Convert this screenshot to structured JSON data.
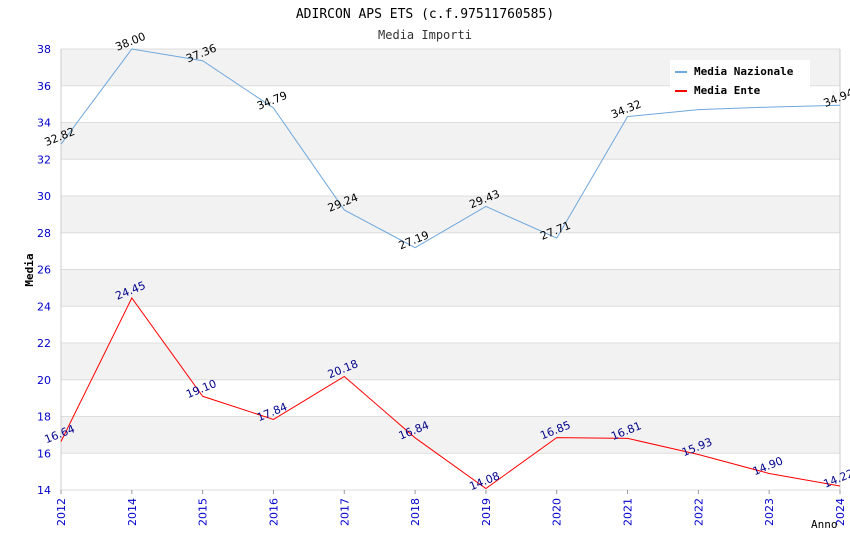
{
  "chart_data": {
    "type": "line",
    "title": "ADIRCON APS ETS (c.f.97511760585)",
    "subtitle": "Media Importi",
    "xlabel": "Anno",
    "ylabel": "Media",
    "ylim": [
      14,
      38
    ],
    "yticks": [
      14,
      16,
      18,
      20,
      22,
      24,
      26,
      28,
      30,
      32,
      34,
      36,
      38
    ],
    "categories": [
      "2012",
      "2014",
      "2015",
      "2016",
      "2017",
      "2018",
      "2019",
      "2020",
      "2021",
      "2022",
      "2023",
      "2024"
    ],
    "series": [
      {
        "name": "Media Nazionale",
        "color": "#6fa8dc",
        "label_color": "#000000",
        "values": [
          32.82,
          38.0,
          37.36,
          34.79,
          29.24,
          27.19,
          29.43,
          27.71,
          34.32,
          34.7,
          34.84,
          34.94
        ],
        "labels": [
          "32.82",
          "38.00",
          "37.36",
          "34.79",
          "29.24",
          "27.19",
          "29.43",
          "27.71",
          "34.32",
          "",
          "",
          "34.94"
        ]
      },
      {
        "name": "Media Ente",
        "color": "#ff0000",
        "label_color": "#00008b",
        "values": [
          16.64,
          24.45,
          19.1,
          17.84,
          20.18,
          16.84,
          14.08,
          16.85,
          16.81,
          15.93,
          14.9,
          14.22
        ],
        "labels": [
          "16.64",
          "24.45",
          "19.10",
          "17.84",
          "20.18",
          "16.84",
          "14.08",
          "16.85",
          "16.81",
          "15.93",
          "14.90",
          "14.22"
        ]
      }
    ],
    "legend_position": "top-right",
    "grid": true
  }
}
